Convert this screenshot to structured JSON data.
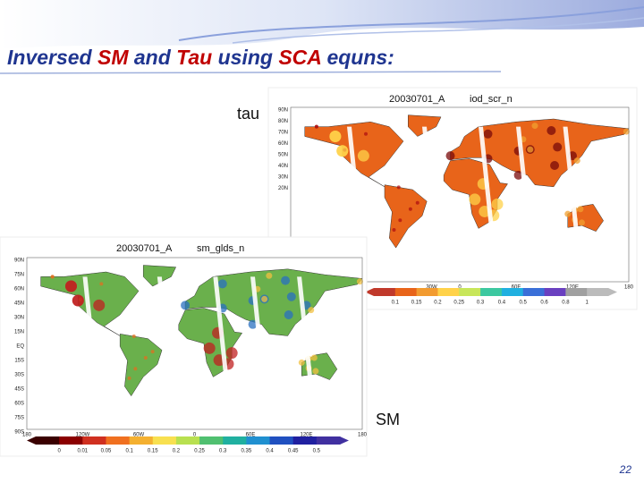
{
  "slide": {
    "title": [
      "Inversed ",
      "SM",
      " and ",
      "Tau",
      " using ",
      "SCA",
      " equns:"
    ],
    "page_number": "22"
  },
  "panels": [
    {
      "label": "tau",
      "map_title": "20030701_A",
      "map_subtitle": "iod_scr_n",
      "y_labels": [
        "90N",
        "80N",
        "70N",
        "60N",
        "50N",
        "40N",
        "30N",
        "20N"
      ],
      "x_labels": [
        "30W",
        "0",
        "60E",
        "120E",
        "180"
      ],
      "colorbar_labels": [
        "0.1",
        "0.15",
        "0.2",
        "0.25",
        "0.3",
        "0.4",
        "0.5",
        "0.6",
        "0.8",
        "1"
      ]
    },
    {
      "label": "SM",
      "map_title": "20030701_A",
      "map_subtitle": "sm_glds_n",
      "y_labels": [
        "90N",
        "75N",
        "60N",
        "45N",
        "30N",
        "15N",
        "EQ",
        "15S",
        "30S",
        "45S",
        "60S",
        "75S",
        "90S"
      ],
      "x_labels": [
        "180",
        "120W",
        "60W",
        "0",
        "60E",
        "120E",
        "180"
      ],
      "colorbar_labels": [
        "0",
        "0.01",
        "0.05",
        "0.1",
        "0.15",
        "0.2",
        "0.25",
        "0.3",
        "0.35",
        "0.4",
        "0.45",
        "0.5"
      ]
    }
  ]
}
